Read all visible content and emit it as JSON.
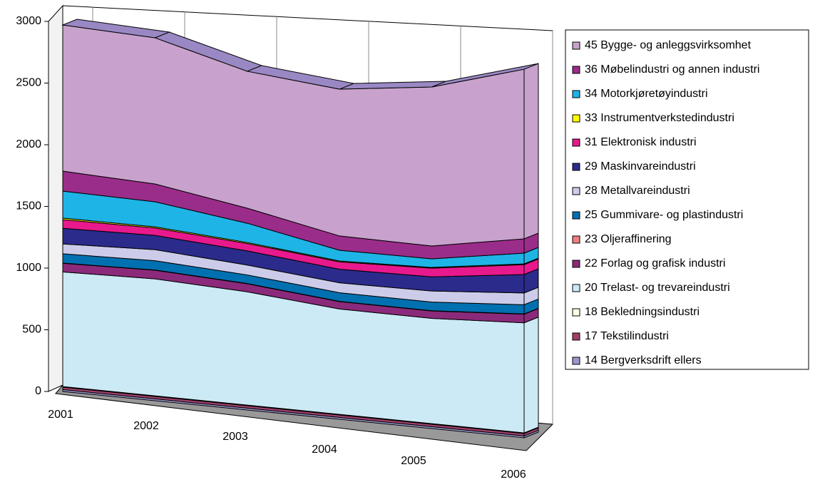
{
  "chart_data": {
    "type": "area3d",
    "categories": [
      "2001",
      "2002",
      "2003",
      "2004",
      "2005",
      "2006"
    ],
    "ylim": [
      0,
      3000
    ],
    "yticks": [
      0,
      500,
      1000,
      1500,
      2000,
      2500,
      3000
    ],
    "grid": true,
    "series": [
      {
        "name": "14 Bergverksdrift ellers",
        "color": "#9999cc",
        "values": [
          15,
          15,
          15,
          15,
          15,
          15
        ]
      },
      {
        "name": "17 Tekstilindustri",
        "color": "#a0406a",
        "values": [
          20,
          20,
          20,
          20,
          20,
          20
        ]
      },
      {
        "name": "18 Bekledningsindustri",
        "color": "#ffffe6",
        "values": [
          5,
          5,
          5,
          5,
          5,
          5
        ]
      },
      {
        "name": "20 Trelast- og trevareindustri",
        "color": "#cceaf5",
        "values": [
          929,
          948,
          918,
          854,
          853,
          892
        ]
      },
      {
        "name": "22 Forlag og grafisk industri",
        "color": "#8b2a7a",
        "values": [
          70,
          70,
          65,
          60,
          60,
          70
        ]
      },
      {
        "name": "23 Oljeraffinering",
        "color": "#f08080",
        "values": [
          2,
          2,
          2,
          2,
          2,
          2
        ]
      },
      {
        "name": "25 Gummivare- og plastindustri",
        "color": "#0070b0",
        "values": [
          75,
          75,
          70,
          70,
          70,
          75
        ]
      },
      {
        "name": "28 Metallvareindustri",
        "color": "#ccccea",
        "values": [
          80,
          90,
          80,
          80,
          90,
          95
        ]
      },
      {
        "name": "29 Maskinvareindustri",
        "color": "#2b2b8c",
        "values": [
          127,
          115,
          115,
          110,
          115,
          150
        ]
      },
      {
        "name": "31 Elektronisk industri",
        "color": "#e8198c",
        "values": [
          70,
          60,
          60,
          60,
          70,
          80
        ]
      },
      {
        "name": "33 Instrumentverkstedindustri",
        "color": "#ffff00",
        "values": [
          12,
          10,
          8,
          7,
          6,
          6
        ]
      },
      {
        "name": "34 Motorkjøretøyindustri",
        "color": "#1eb4e6",
        "values": [
          219,
          203,
          156,
          87,
          70,
          87
        ]
      },
      {
        "name": "36 Møbelindustri og annen industri",
        "color": "#9b2d8a",
        "values": [
          162,
          144,
          122,
          116,
          104,
          116
        ]
      },
      {
        "name": "45 Bygge- og anleggsvirksomhet",
        "color": "#c8a2cc",
        "values": [
          1185,
          1185,
          1110,
          1190,
          1289,
          1375
        ]
      }
    ]
  }
}
